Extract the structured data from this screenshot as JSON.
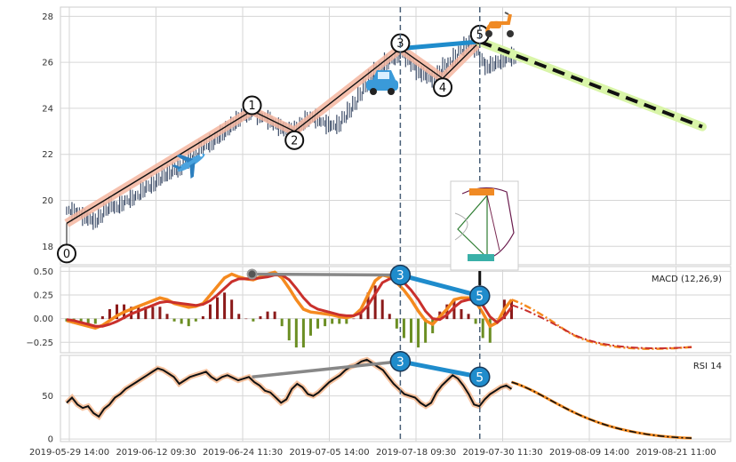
{
  "colors": {
    "grid": "#d6d6d6",
    "candle": "#3a4a66",
    "wave_line": "#111111",
    "wave_glow": "#f5b6a0",
    "forecast_dash": "#111111",
    "forecast_glow": "#d9f5a8",
    "divergence_blue": "#1f8ccc",
    "divergence_gray": "#888888",
    "macd_orange": "#f58a1f",
    "macd_red": "#c9302c",
    "hist_pos": "#8b1a1a",
    "hist_neg": "#6b8e23",
    "rsi_line": "#111111",
    "rsi_glow": "#f5b58a",
    "vline": "#4a6078"
  },
  "icons": [
    "airplane-icon",
    "car-icon",
    "scooter-icon",
    "inset-pattern-thumbnail"
  ],
  "chart_data": [
    {
      "type": "candlestick",
      "panel": "price",
      "ylim": [
        17.2,
        28.4
      ],
      "yticks": [
        18,
        20,
        22,
        24,
        26,
        28
      ],
      "ytick_labels": [
        "18",
        "20",
        "22",
        "24",
        "26",
        "28"
      ],
      "grid": true,
      "elliott_waves": [
        {
          "label": "0",
          "x": 0,
          "y": 19.0
        },
        {
          "label": "1",
          "x": 35,
          "y": 23.9
        },
        {
          "label": "2",
          "x": 43,
          "y": 23.0
        },
        {
          "label": "3",
          "x": 63,
          "y": 26.6
        },
        {
          "label": "4",
          "x": 71,
          "y": 25.3
        },
        {
          "label": "5",
          "x": 78,
          "y": 26.9
        }
      ],
      "forecast": {
        "from": {
          "x": 78,
          "y": 26.9
        },
        "to": {
          "x": 120,
          "y": 23.2
        }
      },
      "price_series": [
        19.55,
        19.5,
        19.45,
        19.3,
        19.2,
        19.1,
        19.3,
        19.6,
        19.8,
        19.7,
        19.85,
        20.0,
        20.1,
        20.2,
        20.45,
        20.6,
        20.7,
        20.9,
        21.1,
        21.2,
        21.35,
        21.4,
        21.6,
        21.8,
        22.0,
        22.2,
        22.4,
        22.5,
        22.7,
        22.9,
        23.1,
        23.3,
        23.5,
        23.7,
        23.8,
        23.85,
        23.7,
        23.6,
        23.5,
        23.3,
        23.2,
        23.1,
        23.05,
        23.1,
        23.3,
        23.5,
        23.6,
        23.55,
        23.4,
        23.3,
        23.25,
        23.3,
        23.6,
        23.9,
        24.2,
        24.6,
        25.0,
        25.4,
        25.6,
        25.8,
        26.0,
        26.1,
        26.3,
        26.4,
        26.2,
        25.9,
        25.6,
        25.5,
        25.4,
        25.3,
        25.6,
        25.8,
        26.0,
        26.2,
        26.5,
        26.7,
        26.9,
        26.6,
        26.1,
        25.8,
        25.9,
        26.0,
        26.1,
        26.2,
        26.25
      ]
    },
    {
      "type": "line",
      "panel": "macd",
      "label": "MACD (12,26,9)",
      "ylim": [
        -0.36,
        0.55
      ],
      "yticks": [
        -0.25,
        0.0,
        0.25,
        0.5
      ],
      "ytick_labels": [
        "−0.25",
        "0.00",
        "0.25",
        "0.50"
      ],
      "series": [
        {
          "role": "macd",
          "values": [
            -0.02,
            -0.04,
            -0.06,
            -0.08,
            -0.1,
            -0.07,
            -0.02,
            0.03,
            0.07,
            0.1,
            0.13,
            0.16,
            0.19,
            0.22,
            0.2,
            0.16,
            0.14,
            0.12,
            0.13,
            0.16,
            0.25,
            0.34,
            0.43,
            0.47,
            0.44,
            0.42,
            0.41,
            0.44,
            0.47,
            0.49,
            0.43,
            0.32,
            0.2,
            0.1,
            0.07,
            0.06,
            0.05,
            0.04,
            0.02,
            0.01,
            0.03,
            0.1,
            0.25,
            0.4,
            0.46,
            0.44,
            0.38,
            0.3,
            0.2,
            0.08,
            -0.02,
            -0.06,
            0.02,
            0.1,
            0.2,
            0.22,
            0.22,
            0.18,
            0.06,
            -0.08,
            -0.04,
            0.1,
            0.2
          ]
        },
        {
          "role": "signal",
          "values": [
            -0.01,
            -0.02,
            -0.04,
            -0.06,
            -0.08,
            -0.08,
            -0.06,
            -0.03,
            0.01,
            0.05,
            0.08,
            0.11,
            0.14,
            0.17,
            0.18,
            0.17,
            0.16,
            0.15,
            0.14,
            0.15,
            0.19,
            0.25,
            0.32,
            0.39,
            0.42,
            0.42,
            0.42,
            0.43,
            0.44,
            0.46,
            0.46,
            0.41,
            0.32,
            0.22,
            0.14,
            0.1,
            0.08,
            0.06,
            0.04,
            0.03,
            0.03,
            0.06,
            0.14,
            0.26,
            0.38,
            0.42,
            0.42,
            0.38,
            0.3,
            0.2,
            0.08,
            0.0,
            -0.01,
            0.04,
            0.12,
            0.18,
            0.2,
            0.2,
            0.14,
            0.02,
            -0.04,
            0.02,
            0.12
          ]
        }
      ],
      "forecast": {
        "peak": 0.14,
        "end": -0.3
      }
    },
    {
      "type": "line",
      "panel": "rsi",
      "label": "RSI 14",
      "ylim": [
        -3,
        97
      ],
      "yticks": [
        0,
        50
      ],
      "ytick_labels": [
        "0",
        "50"
      ],
      "series": [
        {
          "role": "rsi",
          "values": [
            42,
            48,
            40,
            36,
            38,
            30,
            26,
            35,
            40,
            48,
            52,
            58,
            62,
            66,
            70,
            74,
            78,
            82,
            80,
            76,
            72,
            64,
            68,
            72,
            74,
            76,
            78,
            72,
            68,
            72,
            74,
            71,
            68,
            70,
            72,
            66,
            62,
            56,
            54,
            48,
            42,
            46,
            58,
            64,
            60,
            52,
            50,
            54,
            60,
            66,
            70,
            74,
            80,
            84,
            86,
            90,
            92,
            88,
            84,
            80,
            72,
            64,
            58,
            52,
            50,
            48,
            42,
            38,
            42,
            54,
            62,
            68,
            74,
            70,
            62,
            52,
            40,
            38,
            46,
            52,
            56,
            60,
            62,
            58
          ]
        }
      ],
      "forecast": {
        "start": 66,
        "end": 1
      }
    }
  ],
  "divergences": {
    "macd": {
      "points": [
        {
          "label": "3",
          "x": 63,
          "y": 0.46
        },
        {
          "label": "5",
          "x": 78,
          "y": 0.24
        }
      ],
      "gray_start": {
        "x": 35,
        "y": 0.47
      }
    },
    "rsi": {
      "points": [
        {
          "label": "3",
          "x": 63,
          "y": 90
        },
        {
          "label": "5",
          "x": 78,
          "y": 72
        }
      ],
      "gray_start": {
        "x": 35,
        "y": 72
      }
    }
  },
  "xaxis": {
    "tick_labels": [
      "2019-05-29 14:00",
      "2019-06-12 09:30",
      "2019-06-24 11:30",
      "2019-07-05 14:00",
      "2019-07-18 09:30",
      "2019-07-30 11:30",
      "2019-08-09 14:00",
      "2019-08-21 11:00"
    ],
    "vlines_at_wave_labels": [
      "3",
      "5"
    ]
  }
}
